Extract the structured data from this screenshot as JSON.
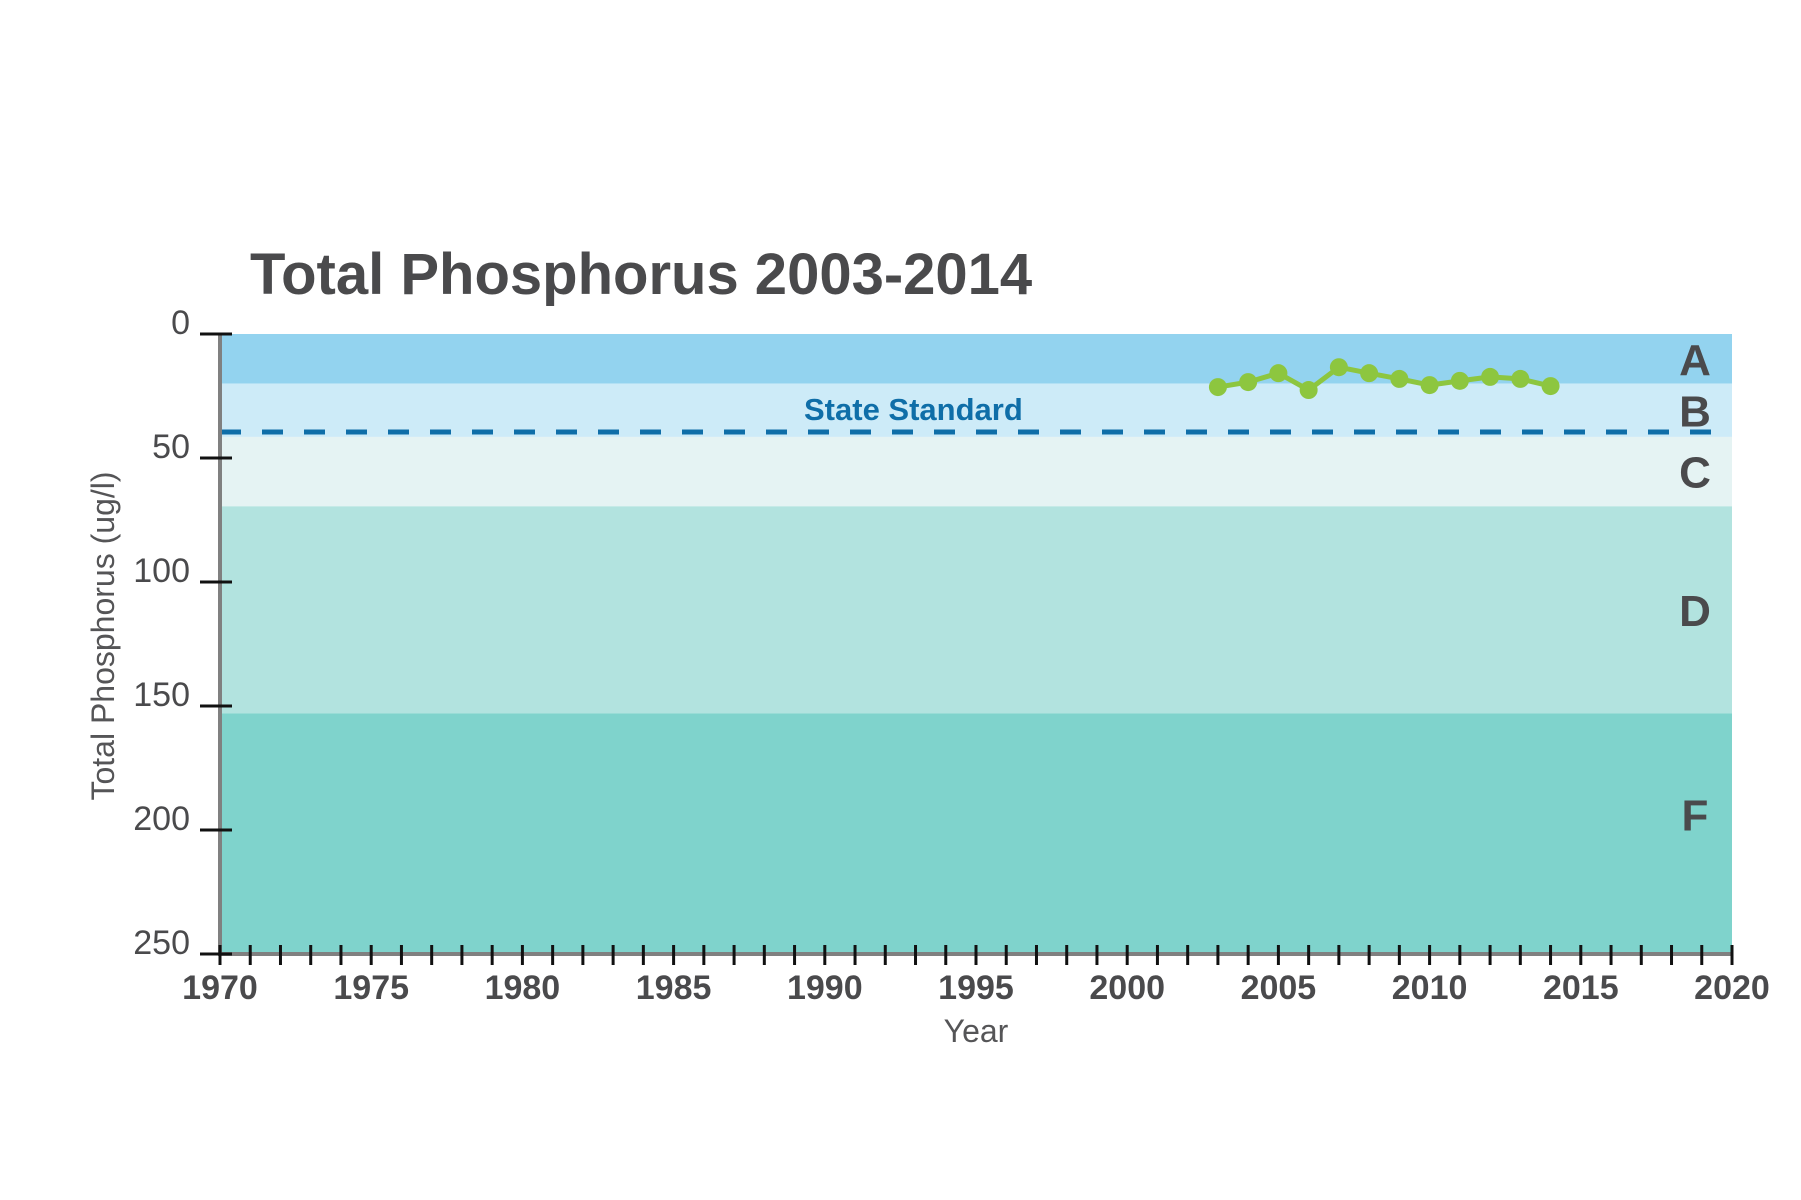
{
  "chart_data": {
    "type": "line",
    "title": "Total Phosphorus 2003-2014",
    "xlabel": "Year",
    "ylabel": "Total Phosphorus (ug/l)",
    "xlim": [
      1970,
      2020
    ],
    "ylim": [
      0,
      250
    ],
    "y_inverted": true,
    "x_ticks": [
      1970,
      1975,
      1980,
      1985,
      1990,
      1995,
      2000,
      2005,
      2010,
      2015,
      2020
    ],
    "x_tick_labels": [
      "1970",
      "1975",
      "1980",
      "1985",
      "1990",
      "1995",
      "2000",
      "2005",
      "2010",
      "2015",
      "2020"
    ],
    "x_minor_tick_step": 1,
    "y_ticks": [
      0,
      50,
      100,
      150,
      200,
      250
    ],
    "y_tick_labels": [
      "0",
      "50",
      "100",
      "150",
      "200",
      "250"
    ],
    "grid": false,
    "series": [
      {
        "name": "Total Phosphorus",
        "color": "#8dc63f",
        "x": [
          2003,
          2004,
          2005,
          2006,
          2007,
          2008,
          2009,
          2010,
          2011,
          2012,
          2013,
          2014
        ],
        "y": [
          21.4,
          19.4,
          15.8,
          22.6,
          13.4,
          15.8,
          18.1,
          20.6,
          18.9,
          17.3,
          18.1,
          21.0
        ]
      }
    ],
    "bands": [
      {
        "grade": "A",
        "from": 0,
        "to": 20,
        "color": "#93d3ef"
      },
      {
        "grade": "B",
        "from": 20,
        "to": 41.5,
        "color": "#cdebf8"
      },
      {
        "grade": "C",
        "from": 41.5,
        "to": 69.5,
        "color": "#e5f3f3"
      },
      {
        "grade": "D",
        "from": 69.5,
        "to": 153,
        "color": "#b2e3df"
      },
      {
        "grade": "F",
        "from": 153,
        "to": 250,
        "color": "#7fd3cc"
      }
    ],
    "reference_line": {
      "label": "State Standard",
      "value": 39.5,
      "color": "#0f6ea8",
      "style": "dashed"
    }
  }
}
